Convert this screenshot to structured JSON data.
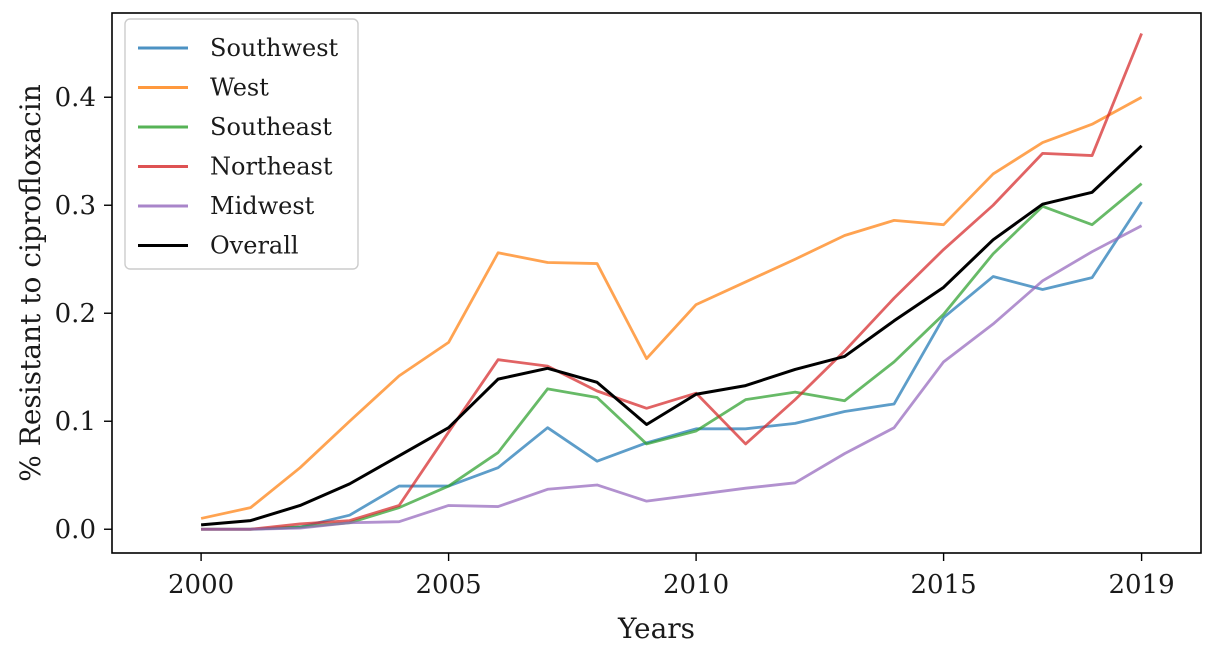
{
  "chart_data": {
    "type": "line",
    "xlabel": "Years",
    "ylabel": "% Resistant to ciprofloxacin",
    "xlim": [
      1998.2,
      20.2
    ],
    "xlim_full": [
      1998.2,
      2020.2
    ],
    "ylim": [
      -0.022,
      0.478
    ],
    "xticks": [
      {
        "value": 2000,
        "label": "2000"
      },
      {
        "value": 2005,
        "label": "2005"
      },
      {
        "value": 2010,
        "label": "2010"
      },
      {
        "value": 2015,
        "label": "2015"
      },
      {
        "value": 2019,
        "label": "2019"
      }
    ],
    "yticks": [
      {
        "value": 0.0,
        "label": "0.0"
      },
      {
        "value": 0.1,
        "label": "0.1"
      },
      {
        "value": 0.2,
        "label": "0.2"
      },
      {
        "value": 0.3,
        "label": "0.3"
      },
      {
        "value": 0.4,
        "label": "0.4"
      }
    ],
    "grid": false,
    "legend_position": "top-left",
    "x": [
      2000,
      2001,
      2002,
      2003,
      2004,
      2005,
      2006,
      2007,
      2008,
      2009,
      2010,
      2011,
      2012,
      2013,
      2014,
      2015,
      2016,
      2017,
      2018,
      2019
    ],
    "series": [
      {
        "name": "Southwest",
        "color": "#1f77b4",
        "values": [
          0.0,
          0.0,
          0.002,
          0.013,
          0.04,
          0.04,
          0.057,
          0.094,
          0.063,
          0.08,
          0.093,
          0.093,
          0.098,
          0.109,
          0.116,
          0.196,
          0.234,
          0.222,
          0.233,
          0.303
        ]
      },
      {
        "name": "West",
        "color": "#ff7f0e",
        "values": [
          0.01,
          0.02,
          0.057,
          0.1,
          0.142,
          0.173,
          0.256,
          0.247,
          0.246,
          0.158,
          0.208,
          0.229,
          0.25,
          0.272,
          0.286,
          0.282,
          0.329,
          0.358,
          0.375,
          0.4
        ]
      },
      {
        "name": "Southeast",
        "color": "#2ca02c",
        "values": [
          0.0,
          0.0,
          0.002,
          0.006,
          0.02,
          0.04,
          0.071,
          0.13,
          0.122,
          0.079,
          0.091,
          0.12,
          0.127,
          0.119,
          0.155,
          0.199,
          0.255,
          0.299,
          0.282,
          0.32
        ]
      },
      {
        "name": "Northeast",
        "color": "#d62728",
        "values": [
          0.0,
          0.0,
          0.005,
          0.008,
          0.022,
          0.09,
          0.157,
          0.151,
          0.128,
          0.112,
          0.126,
          0.079,
          0.12,
          0.165,
          0.214,
          0.259,
          0.3,
          0.348,
          0.346,
          0.459
        ]
      },
      {
        "name": "Midwest",
        "color": "#9467bd",
        "values": [
          0.0,
          0.0,
          0.001,
          0.006,
          0.007,
          0.022,
          0.021,
          0.037,
          0.041,
          0.026,
          0.032,
          0.038,
          0.043,
          0.07,
          0.094,
          0.155,
          0.19,
          0.23,
          0.257,
          0.281
        ]
      },
      {
        "name": "Overall",
        "color": "#000000",
        "values": [
          0.004,
          0.008,
          0.022,
          0.042,
          0.068,
          0.094,
          0.139,
          0.149,
          0.136,
          0.097,
          0.125,
          0.133,
          0.148,
          0.16,
          0.193,
          0.224,
          0.268,
          0.301,
          0.312,
          0.355
        ]
      }
    ]
  }
}
